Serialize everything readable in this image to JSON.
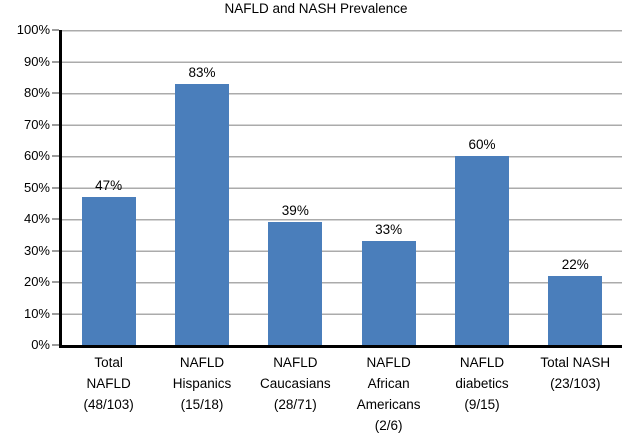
{
  "chart_data": {
    "type": "bar",
    "title": "NAFLD and NASH Prevalence",
    "xlabel": "",
    "ylabel": "",
    "ylim": [
      0,
      100
    ],
    "grid": true,
    "legend_position": "none",
    "bar_color": "#4A7EBB",
    "gridline_color": "#ABABAB",
    "axis_color": "#000000",
    "y_ticks": [
      "100%",
      "90%",
      "80%",
      "70%",
      "60%",
      "50%",
      "40%",
      "30%",
      "20%",
      "10%",
      "0%"
    ],
    "categories": [
      "Total NAFLD (48/103)",
      "NAFLD Hispanics (15/18)",
      "NAFLD Caucasians (28/71)",
      "NAFLD African Americans (2/6)",
      "NAFLD diabetics (9/15)",
      "Total NASH (23/103)"
    ],
    "values": [
      47,
      83,
      39,
      33,
      60,
      22
    ],
    "bars": [
      {
        "value": 47,
        "value_label": "47%",
        "category_lines": [
          "Total",
          "NAFLD",
          "(48/103)"
        ]
      },
      {
        "value": 83,
        "value_label": "83%",
        "category_lines": [
          "NAFLD",
          "Hispanics",
          "(15/18)"
        ]
      },
      {
        "value": 39,
        "value_label": "39%",
        "category_lines": [
          "NAFLD",
          "Caucasians",
          "(28/71)"
        ]
      },
      {
        "value": 33,
        "value_label": "33%",
        "category_lines": [
          "NAFLD",
          "African",
          "Americans",
          "(2/6)"
        ]
      },
      {
        "value": 60,
        "value_label": "60%",
        "category_lines": [
          "NAFLD",
          "diabetics",
          "(9/15)"
        ]
      },
      {
        "value": 22,
        "value_label": "22%",
        "category_lines": [
          "Total NASH",
          "(23/103)"
        ]
      }
    ]
  }
}
